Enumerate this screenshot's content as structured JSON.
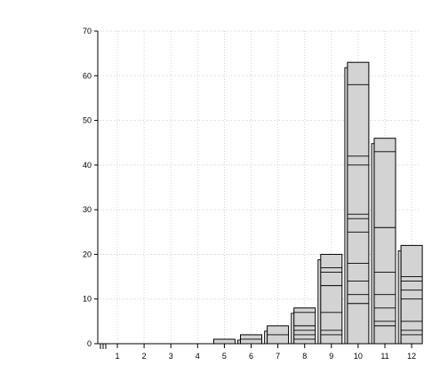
{
  "chart_data": {
    "type": "bar",
    "title": "",
    "xlabel": "",
    "ylabel": "",
    "ylim": [
      0,
      70
    ],
    "yticks": [
      0,
      10,
      20,
      30,
      40,
      50,
      60,
      70
    ],
    "x_tick_labels": [
      "1",
      "2",
      "3",
      "4",
      "5",
      "6",
      "7",
      "8",
      "9",
      "10",
      "11",
      "12"
    ],
    "grid": true,
    "colors": {
      "bar_fill": "#d3d3d3",
      "bar_stroke": "#000000",
      "grid": "#c8c8c8"
    },
    "stacks": [
      {
        "x": 5,
        "segments": [
          1
        ],
        "outline": 1
      },
      {
        "x": 6,
        "segments": [
          2,
          1
        ],
        "outline": 2
      },
      {
        "x": 7,
        "segments": [
          4,
          2
        ],
        "outline": 4
      },
      {
        "x": 8,
        "segments": [
          8,
          7,
          4,
          3,
          2,
          1
        ],
        "outline": 8
      },
      {
        "x": 9,
        "segments": [
          20,
          17,
          16,
          13,
          7,
          3,
          2
        ],
        "outline": 20
      },
      {
        "x": 10,
        "segments": [
          63,
          58,
          42,
          40,
          29,
          28,
          25,
          18,
          14,
          11,
          9
        ],
        "outline": 63
      },
      {
        "x": 11,
        "segments": [
          46,
          43,
          26,
          16,
          11,
          8,
          5,
          4
        ],
        "outline": 46
      },
      {
        "x": 12,
        "segments": [
          22,
          15,
          14,
          12,
          10,
          5,
          3,
          2
        ],
        "outline": 22
      }
    ]
  }
}
